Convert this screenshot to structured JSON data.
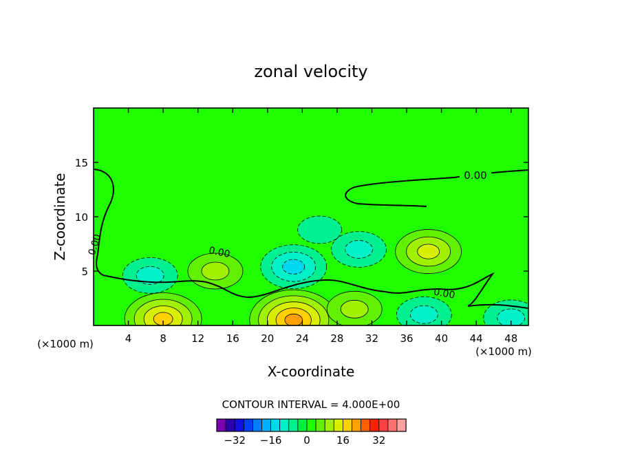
{
  "chart_data": {
    "type": "heatmap",
    "subtype": "filled-contour",
    "title": "zonal velocity",
    "xlabel": "X-coordinate",
    "ylabel": "Z-coordinate",
    "x_unit_left": "(×1000 m)",
    "x_unit_right": "(×1000 m)",
    "xlim": [
      0,
      50
    ],
    "ylim": [
      0,
      20
    ],
    "x_ticks": [
      4,
      8,
      12,
      16,
      20,
      24,
      28,
      32,
      36,
      40,
      44,
      48
    ],
    "y_ticks": [
      5,
      10,
      15
    ],
    "contour_interval_label": "CONTOUR INTERVAL = 4.000E+00",
    "contour_labels": [
      "0.00",
      "0.00",
      "0.00",
      "0.00"
    ],
    "colorbar": {
      "levels": [
        -36,
        -32,
        -28,
        -24,
        -20,
        -16,
        -12,
        -8,
        -4,
        0,
        4,
        8,
        12,
        16,
        20,
        24,
        28,
        32,
        36
      ],
      "tick_values": [
        -32,
        -16,
        0,
        16,
        32
      ],
      "tick_labels": [
        "−32",
        "−16",
        "0",
        "16",
        "32"
      ],
      "colors": [
        "#7a00b0",
        "#2a00b0",
        "#1010e0",
        "#0040ff",
        "#0080ff",
        "#00b0ff",
        "#00d8f0",
        "#00f0c8",
        "#00f090",
        "#00f040",
        "#20ff00",
        "#60f000",
        "#a0f000",
        "#d8f000",
        "#ffd000",
        "#ffa000",
        "#ff6000",
        "#ff2000",
        "#ff4040",
        "#ff7070",
        "#ffa0a0"
      ]
    },
    "background_value": 0,
    "features": [
      {
        "x": 6.5,
        "z": 4.6,
        "value": -8
      },
      {
        "x": 8,
        "z": 0.6,
        "value": 16
      },
      {
        "x": 14,
        "z": 5.0,
        "value": 8
      },
      {
        "x": 23,
        "z": 5.4,
        "value": -12
      },
      {
        "x": 23,
        "z": 0.5,
        "value": 20
      },
      {
        "x": 26,
        "z": 8.8,
        "value": -4
      },
      {
        "x": 30,
        "z": 1.5,
        "value": 8
      },
      {
        "x": 30.5,
        "z": 7.0,
        "value": -8
      },
      {
        "x": 38.5,
        "z": 6.8,
        "value": 12
      },
      {
        "x": 38,
        "z": 1.0,
        "value": -8
      },
      {
        "x": 48,
        "z": 0.7,
        "value": -8
      }
    ]
  }
}
